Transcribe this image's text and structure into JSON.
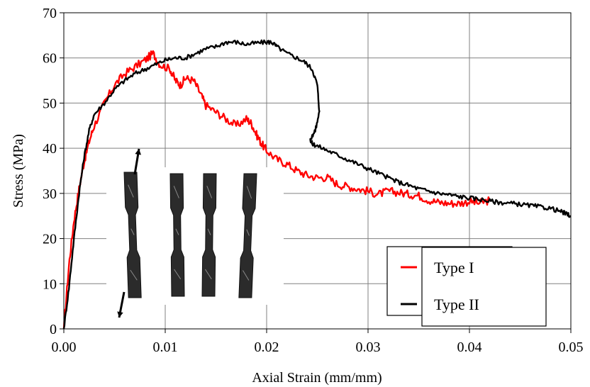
{
  "chart_data": {
    "type": "line",
    "xlabel": "Axial Strain (mm/mm)",
    "ylabel": "Stress (MPa)",
    "xlim": [
      0,
      0.05
    ],
    "ylim": [
      0,
      70
    ],
    "x_ticks": [
      "0.00",
      "0.01",
      "0.02",
      "0.03",
      "0.04",
      "0.05"
    ],
    "y_ticks": [
      "0",
      "10",
      "20",
      "30",
      "40",
      "50",
      "60",
      "70"
    ],
    "grid": true,
    "legend_placement": "bottom-right",
    "series": [
      {
        "name": "Type I",
        "color": "#ff0000",
        "points": [
          [
            0,
            0
          ],
          [
            0.0005,
            14
          ],
          [
            0.001,
            24
          ],
          [
            0.0015,
            31
          ],
          [
            0.002,
            37
          ],
          [
            0.0025,
            41.5
          ],
          [
            0.003,
            45
          ],
          [
            0.004,
            50
          ],
          [
            0.005,
            54
          ],
          [
            0.006,
            56.5
          ],
          [
            0.007,
            58
          ],
          [
            0.008,
            59.5
          ],
          [
            0.0088,
            61
          ],
          [
            0.0095,
            58.5
          ],
          [
            0.0105,
            57.5
          ],
          [
            0.011,
            55
          ],
          [
            0.0115,
            54
          ],
          [
            0.012,
            55.5
          ],
          [
            0.0128,
            55
          ],
          [
            0.0135,
            52
          ],
          [
            0.014,
            49.5
          ],
          [
            0.015,
            48
          ],
          [
            0.016,
            46.5
          ],
          [
            0.017,
            45
          ],
          [
            0.018,
            46.5
          ],
          [
            0.0185,
            45.5
          ],
          [
            0.019,
            43
          ],
          [
            0.0195,
            41
          ],
          [
            0.02,
            39.5
          ],
          [
            0.021,
            37.5
          ],
          [
            0.022,
            36.5
          ],
          [
            0.023,
            35
          ],
          [
            0.024,
            34
          ],
          [
            0.025,
            33.5
          ],
          [
            0.026,
            33.5
          ],
          [
            0.027,
            32
          ],
          [
            0.028,
            31.5
          ],
          [
            0.029,
            31
          ],
          [
            0.03,
            30.5
          ],
          [
            0.031,
            29.8
          ],
          [
            0.032,
            30.5
          ],
          [
            0.033,
            30.2
          ],
          [
            0.034,
            29.8
          ],
          [
            0.035,
            29.5
          ],
          [
            0.036,
            28.5
          ],
          [
            0.037,
            28
          ],
          [
            0.038,
            27.8
          ],
          [
            0.039,
            27.8
          ],
          [
            0.04,
            28.2
          ],
          [
            0.041,
            27.8
          ],
          [
            0.042,
            28.5
          ]
        ]
      },
      {
        "name": "Type II",
        "color": "#000000",
        "points": [
          [
            0,
            0
          ],
          [
            0.0005,
            9
          ],
          [
            0.001,
            20
          ],
          [
            0.0015,
            30
          ],
          [
            0.002,
            38
          ],
          [
            0.0025,
            44
          ],
          [
            0.003,
            47.5
          ],
          [
            0.004,
            50
          ],
          [
            0.005,
            53
          ],
          [
            0.006,
            55
          ],
          [
            0.007,
            56.5
          ],
          [
            0.008,
            57.5
          ],
          [
            0.009,
            58.5
          ],
          [
            0.01,
            59.5
          ],
          [
            0.011,
            60
          ],
          [
            0.012,
            60
          ],
          [
            0.013,
            61
          ],
          [
            0.014,
            62
          ],
          [
            0.015,
            62.5
          ],
          [
            0.016,
            63.5
          ],
          [
            0.017,
            63.5
          ],
          [
            0.018,
            63
          ],
          [
            0.019,
            63.3
          ],
          [
            0.02,
            63.5
          ],
          [
            0.0205,
            63.5
          ],
          [
            0.021,
            62.5
          ],
          [
            0.022,
            61
          ],
          [
            0.023,
            60
          ],
          [
            0.0238,
            59
          ],
          [
            0.0245,
            57.5
          ],
          [
            0.025,
            54
          ],
          [
            0.0252,
            48
          ],
          [
            0.0248,
            44
          ],
          [
            0.0243,
            42
          ],
          [
            0.0245,
            41
          ],
          [
            0.025,
            40.5
          ],
          [
            0.026,
            39.5
          ],
          [
            0.027,
            38.5
          ],
          [
            0.028,
            37.5
          ],
          [
            0.029,
            36.5
          ],
          [
            0.03,
            35.5
          ],
          [
            0.031,
            34.5
          ],
          [
            0.032,
            33.5
          ],
          [
            0.033,
            32.5
          ],
          [
            0.034,
            31.8
          ],
          [
            0.035,
            31
          ],
          [
            0.036,
            30.5
          ],
          [
            0.037,
            30
          ],
          [
            0.038,
            29.7
          ],
          [
            0.039,
            29.3
          ],
          [
            0.04,
            29
          ],
          [
            0.041,
            28.7
          ],
          [
            0.042,
            28.3
          ],
          [
            0.043,
            28
          ],
          [
            0.044,
            27.8
          ],
          [
            0.045,
            27.6
          ],
          [
            0.046,
            27.3
          ],
          [
            0.047,
            27
          ],
          [
            0.048,
            26.7
          ],
          [
            0.049,
            26
          ],
          [
            0.0495,
            25.5
          ],
          [
            0.05,
            25
          ]
        ]
      }
    ]
  }
}
